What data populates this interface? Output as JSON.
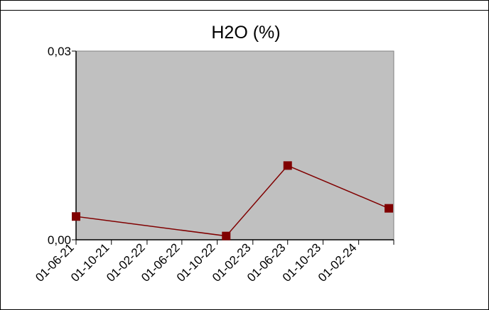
{
  "chart_data": {
    "type": "line",
    "title": "H2O (%)",
    "xlabel": "",
    "ylabel": "",
    "x_tick_labels": [
      "01-06-21",
      "01-10-21",
      "01-02-22",
      "01-06-22",
      "01-10-22",
      "01-02-23",
      "01-06-23",
      "01-10-23",
      "01-02-24"
    ],
    "y_tick_labels": [
      "0,03",
      "0,00"
    ],
    "xlim": [
      "2021-06-01",
      "2024-06-01"
    ],
    "ylim": [
      0,
      0.03
    ],
    "grid": false,
    "legend": "none",
    "series": [
      {
        "x": [
          "2021-06-01",
          "2022-11-01",
          "2023-06-01",
          "2024-05-15"
        ],
        "values": [
          0.0037,
          0.0006,
          0.0118,
          0.005
        ],
        "color": "#800000",
        "marker": "square"
      }
    ],
    "plot_background": "#c0c0c0"
  }
}
